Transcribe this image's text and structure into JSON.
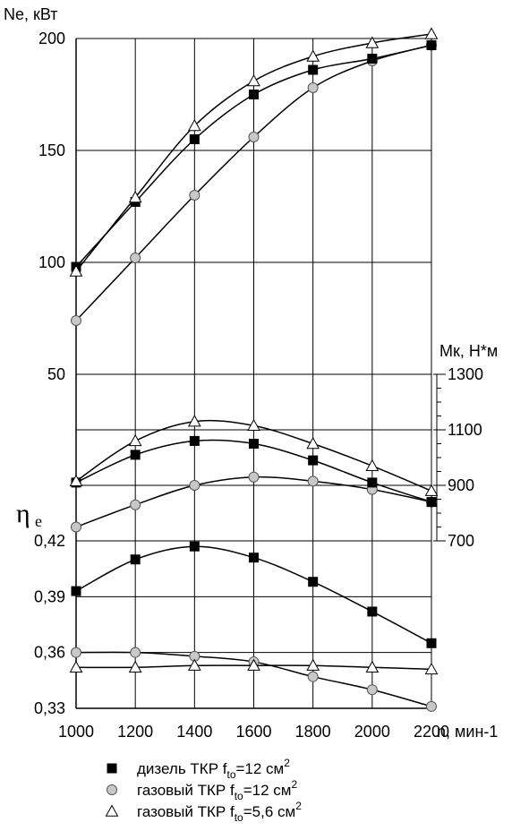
{
  "chart_data": {
    "type": "line",
    "x_label": "n, мин-1",
    "x_ticks": [
      "1000",
      "1200",
      "1400",
      "1600",
      "1800",
      "2000",
      "2200"
    ],
    "x": [
      1000,
      1200,
      1400,
      1600,
      1800,
      2000,
      2200
    ],
    "panels": [
      {
        "id": "ne",
        "ylabel": "Ne, кВт",
        "y_ticks": [
          "200",
          "150",
          "100",
          "50"
        ],
        "ylim": [
          50,
          200
        ],
        "series": [
          {
            "legend": 0,
            "values": [
              98,
              127,
              155,
              175,
              186,
              191,
              197
            ]
          },
          {
            "legend": 1,
            "values": [
              74,
              102,
              130,
              156,
              178,
              190,
              197
            ]
          },
          {
            "legend": 2,
            "values": [
              96,
              129,
              161,
              181,
              192,
              198,
              202
            ]
          }
        ]
      },
      {
        "id": "mk",
        "ylabel": "Мк, Н*м",
        "y_ticks": [
          "1300",
          "1100",
          "900",
          "700"
        ],
        "ylim": [
          700,
          1300
        ],
        "series": [
          {
            "legend": 0,
            "values": [
              910,
              1010,
              1060,
              1050,
              990,
              910,
              840
            ]
          },
          {
            "legend": 1,
            "values": [
              750,
              830,
              900,
              930,
              915,
              885,
              840
            ]
          },
          {
            "legend": 2,
            "values": [
              915,
              1060,
              1130,
              1115,
              1050,
              970,
              880
            ]
          }
        ]
      },
      {
        "id": "eta",
        "ylabel": "η",
        "ylabel_sub": "e",
        "y_ticks": [
          "0,42",
          "0,39",
          "0,36",
          "0,33"
        ],
        "ylim": [
          0.33,
          0.42
        ],
        "series": [
          {
            "legend": 0,
            "values": [
              0.393,
              0.41,
              0.417,
              0.411,
              0.398,
              0.382,
              0.365
            ]
          },
          {
            "legend": 1,
            "values": [
              0.36,
              0.36,
              0.358,
              0.355,
              0.347,
              0.34,
              0.331
            ]
          },
          {
            "legend": 2,
            "values": [
              0.352,
              0.352,
              0.353,
              0.353,
              0.353,
              0.352,
              0.351
            ]
          }
        ]
      }
    ],
    "legend": [
      {
        "marker": "square",
        "text": "дизель ТКР f",
        "sub": "to",
        "text2": "=12 см",
        "sup": "2"
      },
      {
        "marker": "circle",
        "text": "газовый ТКР f",
        "sub": "to",
        "text2": "=12 см",
        "sup": "2"
      },
      {
        "marker": "triangle",
        "text": "газовый ТКР f",
        "sub": "to",
        "text2": "=5,6 см",
        "sup": "2"
      }
    ]
  }
}
